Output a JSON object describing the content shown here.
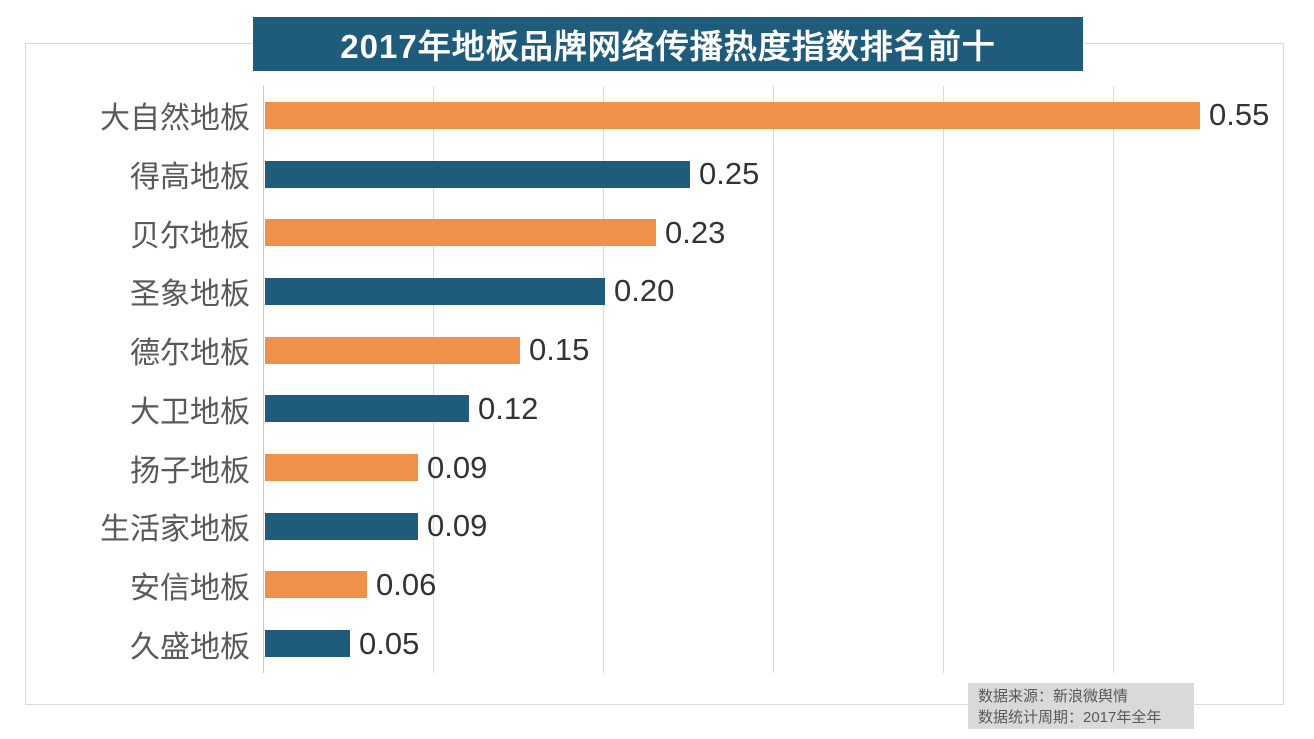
{
  "title": {
    "text": "2017年地板品牌网络传播热度指数排名前十"
  },
  "chart_data": {
    "type": "bar",
    "orientation": "horizontal",
    "title": "2017年地板品牌网络传播热度指数排名前十",
    "categories": [
      "大自然地板",
      "得高地板",
      "贝尔地板",
      "圣象地板",
      "德尔地板",
      "大卫地板",
      "扬子地板",
      "生活家地板",
      "安信地板",
      "久盛地板"
    ],
    "values": [
      0.55,
      0.25,
      0.23,
      0.2,
      0.15,
      0.12,
      0.09,
      0.09,
      0.06,
      0.05
    ],
    "value_labels": [
      "0.55",
      "0.25",
      "0.23",
      "0.20",
      "0.15",
      "0.12",
      "0.09",
      "0.09",
      "0.06",
      "0.05"
    ],
    "xlim": [
      0,
      0.6
    ],
    "gridline_step": 0.1,
    "grid": "vertical-only",
    "legend_position": "none",
    "data_labels": "outside-end",
    "bar_colors_alternating": [
      "#f0914b",
      "#1f5c7c"
    ]
  },
  "footer": {
    "source_line1": "数据来源：新浪微舆情",
    "source_line2": "数据统计周期：2017年全年"
  },
  "colors": {
    "orange_bar": "#f0914b",
    "teal_bar": "#1f5c7c",
    "title_bg": "#1f5c7c",
    "title_text": "#ffffff",
    "gridline": "#d9d9d9",
    "category_label": "#595959",
    "value_label": "#333333",
    "footer_bg": "#d9d9d9",
    "footer_text": "#595959",
    "background": "#ffffff"
  }
}
